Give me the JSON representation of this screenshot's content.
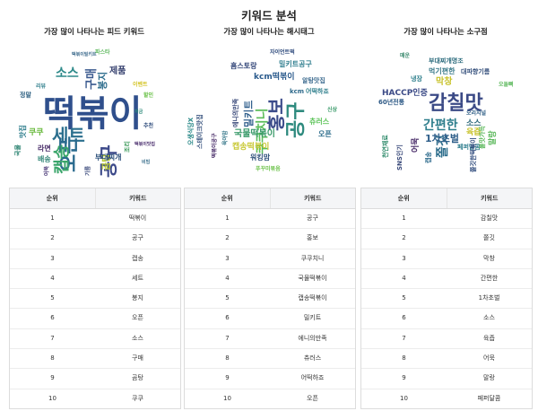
{
  "page": {
    "title": "키워드 분석"
  },
  "columns": [
    {
      "title": "가장 많이 나타나는 피드 키워드",
      "table_headers": {
        "rank": "순위",
        "keyword": "키워드"
      },
      "rows": [
        {
          "rank": "1",
          "keyword": "떡볶이"
        },
        {
          "rank": "2",
          "keyword": "공구"
        },
        {
          "rank": "3",
          "keyword": "캡송"
        },
        {
          "rank": "4",
          "keyword": "세트"
        },
        {
          "rank": "5",
          "keyword": "봉지"
        },
        {
          "rank": "6",
          "keyword": "오픈"
        },
        {
          "rank": "7",
          "keyword": "소스"
        },
        {
          "rank": "8",
          "keyword": "구매"
        },
        {
          "rank": "9",
          "keyword": "곰탕"
        },
        {
          "rank": "10",
          "keyword": "쿠쿠"
        }
      ],
      "cloud_words": [
        {
          "text": "떡볶이",
          "color": "#2f4f8c"
        },
        {
          "text": "세트",
          "color": "#2b6f8e"
        },
        {
          "text": "오픈",
          "color": "#2a6a8e"
        },
        {
          "text": "캡송",
          "color": "#3aa56a"
        },
        {
          "text": "공구",
          "color": "#3d4a8a"
        },
        {
          "text": "소스",
          "color": "#2e8a8a"
        },
        {
          "text": "구매",
          "color": "#3b5a8f"
        },
        {
          "text": "봉지",
          "color": "#2f6e8e"
        },
        {
          "text": "곰탕",
          "color": "#b5c62a"
        },
        {
          "text": "쿠쿠",
          "color": "#6aba3e"
        },
        {
          "text": "부대찌개",
          "color": "#2b4f7a"
        },
        {
          "text": "제품",
          "color": "#35406e"
        },
        {
          "text": "라면",
          "color": "#4a2e6a"
        },
        {
          "text": "맛집",
          "color": "#2e7e8c"
        },
        {
          "text": "배송",
          "color": "#3a8a7c"
        },
        {
          "text": "조리",
          "color": "#3c9a5a"
        },
        {
          "text": "국물",
          "color": "#27806e"
        },
        {
          "text": "떡볶이맛집",
          "color": "#4b2f6e"
        },
        {
          "text": "이벤트",
          "color": "#d4c52a"
        },
        {
          "text": "떡볶이밀키트",
          "color": "#3c6a8c"
        },
        {
          "text": "할인",
          "color": "#6cc24a"
        },
        {
          "text": "정말",
          "color": "#2c5f80"
        },
        {
          "text": "어묵",
          "color": "#4a3878"
        },
        {
          "text": "파스타",
          "color": "#5cb85c"
        },
        {
          "text": "리뷰",
          "color": "#2f7f8c"
        },
        {
          "text": "추천",
          "color": "#2c4a7a"
        },
        {
          "text": "저금",
          "color": "#2e8a7a"
        },
        {
          "text": "비빔",
          "color": "#3a6f8c"
        },
        {
          "text": "기름",
          "color": "#3b4a7c"
        }
      ]
    },
    {
      "title": "가장 많이 나타나는 해시태그",
      "table_headers": {
        "rank": "순위",
        "keyword": "키워드"
      },
      "rows": [
        {
          "rank": "1",
          "keyword": "공구"
        },
        {
          "rank": "2",
          "keyword": "홍보"
        },
        {
          "rank": "3",
          "keyword": "쿠쿠치니"
        },
        {
          "rank": "4",
          "keyword": "국물떡볶이"
        },
        {
          "rank": "5",
          "keyword": "캡송떡볶이"
        },
        {
          "rank": "6",
          "keyword": "밀키트"
        },
        {
          "rank": "7",
          "keyword": "에니의만족"
        },
        {
          "rank": "8",
          "keyword": "츄러스"
        },
        {
          "rank": "9",
          "keyword": "어떡하죠"
        },
        {
          "rank": "10",
          "keyword": "오픈"
        }
      ],
      "cloud_words": [
        {
          "text": "공구",
          "color": "#2e8a7e"
        },
        {
          "text": "홍보",
          "color": "#3b4b8a"
        },
        {
          "text": "쿠쿠치니",
          "color": "#5bbd5a"
        },
        {
          "text": "국물떡볶이",
          "color": "#3a9a6a"
        },
        {
          "text": "캡송떡볶이",
          "color": "#c8c834"
        },
        {
          "text": "밀키트",
          "color": "#2f5e8c"
        },
        {
          "text": "에니의만족",
          "color": "#3b4a7a"
        },
        {
          "text": "츄러스",
          "color": "#5ec45a"
        },
        {
          "text": "어떡하죠",
          "color": "#2f7f8c"
        },
        {
          "text": "오픈",
          "color": "#2e6e8c"
        },
        {
          "text": "kcm떡볶이",
          "color": "#2a5a8c"
        },
        {
          "text": "흠스토랑",
          "color": "#35487a"
        },
        {
          "text": "밀키트공구",
          "color": "#2f7e8e"
        },
        {
          "text": "알탕맛집",
          "color": "#3b6a8e"
        },
        {
          "text": "워킹맘",
          "color": "#2d4f7a"
        },
        {
          "text": "푸꾸미볶음",
          "color": "#6cc24a"
        },
        {
          "text": "오생식당X",
          "color": "#2c8a8a"
        },
        {
          "text": "스테이크맛집",
          "color": "#35507c"
        },
        {
          "text": "자이언트떡",
          "color": "#2e4a7c"
        },
        {
          "text": "떡볶이공구",
          "color": "#4a2e6a"
        },
        {
          "text": "kcm",
          "color": "#2f6a8c"
        },
        {
          "text": "육아맘",
          "color": "#3a7a8c"
        },
        {
          "text": "신상",
          "color": "#3a9a6a"
        }
      ]
    },
    {
      "title": "가장 많이 나타나는 소구점",
      "table_headers": {
        "rank": "순위",
        "keyword": "키워드"
      },
      "rows": [
        {
          "rank": "1",
          "keyword": "감칠맛"
        },
        {
          "rank": "2",
          "keyword": "쫄깃"
        },
        {
          "rank": "3",
          "keyword": "막창"
        },
        {
          "rank": "4",
          "keyword": "간편한"
        },
        {
          "rank": "5",
          "keyword": "1차초벌"
        },
        {
          "rank": "6",
          "keyword": "소스"
        },
        {
          "rank": "7",
          "keyword": "육즙"
        },
        {
          "rank": "8",
          "keyword": "어묵"
        },
        {
          "rank": "9",
          "keyword": "말랑"
        },
        {
          "rank": "10",
          "keyword": "페퍼달콤"
        }
      ],
      "cloud_words": [
        {
          "text": "감칠맛",
          "color": "#3b4a86"
        },
        {
          "text": "쫄깃",
          "color": "#2e6e8c"
        },
        {
          "text": "막창",
          "color": "#c8c22a"
        },
        {
          "text": "간편한",
          "color": "#2e7e8c"
        },
        {
          "text": "1차초벌",
          "color": "#2f5f8a"
        },
        {
          "text": "소스",
          "color": "#2e6a7c"
        },
        {
          "text": "육즙",
          "color": "#c8c22a"
        },
        {
          "text": "어묵",
          "color": "#4a2e6a"
        },
        {
          "text": "말랑",
          "color": "#5cb85c"
        },
        {
          "text": "페퍼달콤",
          "color": "#2f7e8e"
        },
        {
          "text": "HACCP인증",
          "color": "#3b4a86"
        },
        {
          "text": "60년전통",
          "color": "#2e5a86"
        },
        {
          "text": "부대찌개명조",
          "color": "#2a6a7c"
        },
        {
          "text": "먹기편한",
          "color": "#3a7a8a"
        },
        {
          "text": "대파향기름",
          "color": "#35507c"
        },
        {
          "text": "불맛가득",
          "color": "#5cb85c"
        },
        {
          "text": "쫄깃한떡볶이",
          "color": "#2e4a7c"
        },
        {
          "text": "SNS인기",
          "color": "#3a4a7a"
        },
        {
          "text": "냉장",
          "color": "#2e7f8c"
        },
        {
          "text": "천연재료",
          "color": "#2e8a6a"
        },
        {
          "text": "캡송",
          "color": "#2c6a8c"
        },
        {
          "text": "오리지널",
          "color": "#2f5f86"
        },
        {
          "text": "매운",
          "color": "#3b8a6e"
        },
        {
          "text": "오돌뼈",
          "color": "#5cb85c"
        }
      ]
    }
  ]
}
